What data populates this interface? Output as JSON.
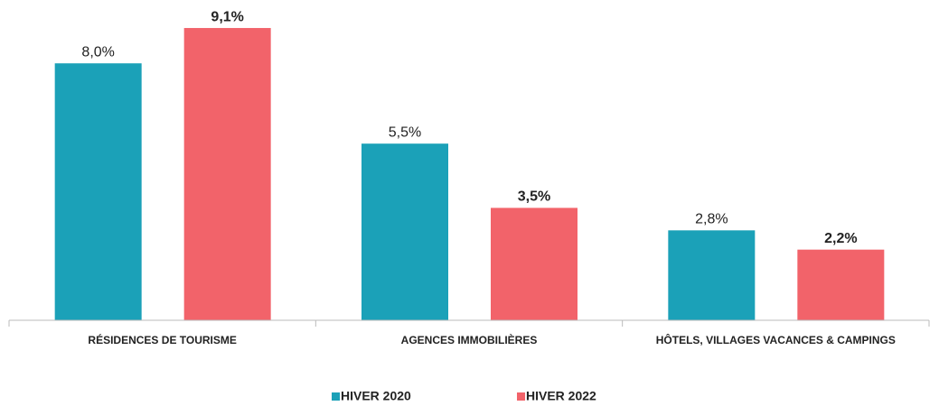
{
  "chart_data": {
    "type": "bar",
    "categories": [
      "RÉSIDENCES DE TOURISME",
      "AGENCES IMMOBILIÈRES",
      "HÔTELS, VILLAGES VACANCES & CAMPINGS"
    ],
    "series": [
      {
        "name": "HIVER 2020",
        "color": "#1ba1b8",
        "values": [
          8.0,
          5.5,
          2.8
        ],
        "value_labels": [
          "8,0%",
          "5,5%",
          "2,8%"
        ]
      },
      {
        "name": "HIVER 2022",
        "color": "#f2636a",
        "values": [
          9.1,
          3.5,
          2.2
        ],
        "value_labels": [
          "9,1%",
          "3,5%",
          "2,2%"
        ]
      }
    ]
  }
}
